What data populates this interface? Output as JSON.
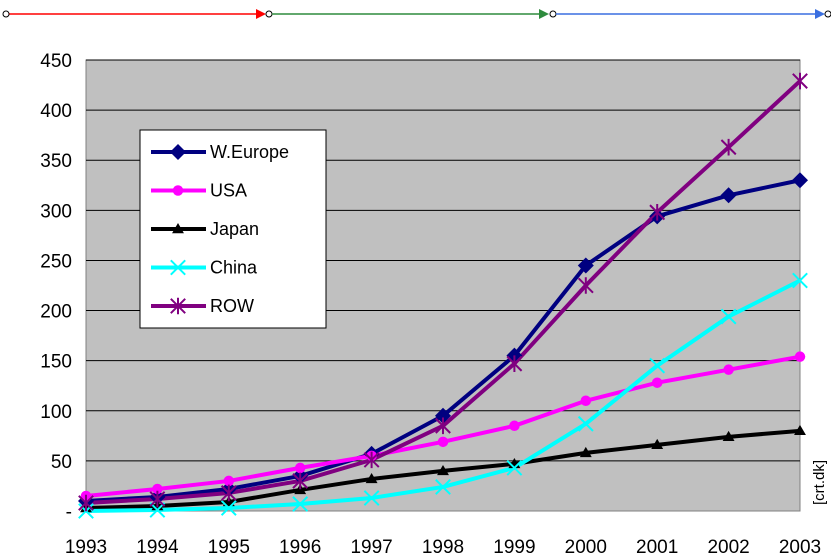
{
  "chart_data": {
    "type": "line",
    "title": "",
    "xlabel": "",
    "ylabel": "",
    "categories": [
      "1993",
      "1994",
      "1995",
      "1996",
      "1997",
      "1998",
      "1999",
      "2000",
      "2001",
      "2002",
      "2003"
    ],
    "y_tick_labels": [
      "-",
      "50",
      "100",
      "150",
      "200",
      "250",
      "300",
      "350",
      "400",
      "450"
    ],
    "ylim": [
      0,
      450
    ],
    "grid": true,
    "legend_position": "top-left",
    "credit": "[crt.dk]",
    "series": [
      {
        "name": "W.Europe",
        "color": "#000080",
        "marker": "diamond",
        "values": [
          10,
          14,
          22,
          35,
          57,
          95,
          155,
          245,
          294,
          315,
          330
        ]
      },
      {
        "name": "USA",
        "color": "#ff00ff",
        "marker": "circle",
        "values": [
          15,
          22,
          30,
          43,
          55,
          69,
          85,
          110,
          128,
          141,
          154
        ]
      },
      {
        "name": "Japan",
        "color": "#000000",
        "marker": "triangle",
        "values": [
          3,
          5,
          9,
          21,
          32,
          40,
          47,
          58,
          66,
          74,
          80
        ]
      },
      {
        "name": "China",
        "color": "#00ffff",
        "marker": "x",
        "values": [
          0,
          1,
          3,
          7,
          13,
          24,
          43,
          87,
          145,
          194,
          230
        ]
      },
      {
        "name": "ROW",
        "color": "#800080",
        "marker": "star",
        "values": [
          8,
          12,
          18,
          30,
          51,
          85,
          147,
          225,
          298,
          363,
          429
        ]
      }
    ]
  }
}
